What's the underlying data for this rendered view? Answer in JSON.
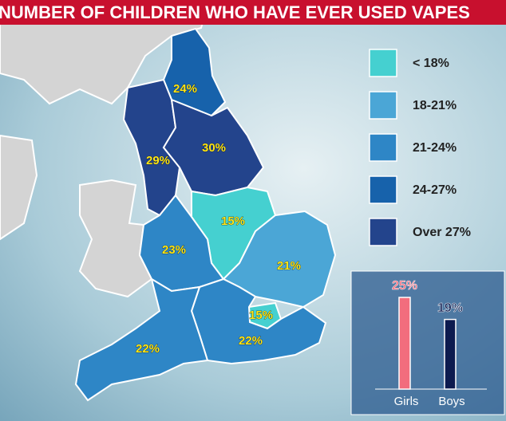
{
  "title": "NUMBER OF CHILDREN WHO HAVE EVER USED VAPES",
  "legend": [
    {
      "label": "< 18%",
      "color": "#45d0d0"
    },
    {
      "label": "18-21%",
      "color": "#4ba6d6"
    },
    {
      "label": "21-24%",
      "color": "#2e86c6"
    },
    {
      "label": "24-27%",
      "color": "#1762ab"
    },
    {
      "label": "Over 27%",
      "color": "#23448c"
    }
  ],
  "regions": [
    {
      "label": "24%",
      "color": "#1762ab"
    },
    {
      "label": "29%",
      "color": "#23448c"
    },
    {
      "label": "30%",
      "color": "#23448c"
    },
    {
      "label": "15%",
      "color": "#45d0d0"
    },
    {
      "label": "23%",
      "color": "#2e86c6"
    },
    {
      "label": "21%",
      "color": "#4ba6d6"
    },
    {
      "label": "15%",
      "color": "#45d0d0"
    },
    {
      "label": "22%",
      "color": "#2e86c6"
    },
    {
      "label": "22%",
      "color": "#2e86c6"
    }
  ],
  "chart_data": {
    "type": "bar",
    "categories": [
      "Girls",
      "Boys"
    ],
    "values": [
      25,
      19
    ],
    "value_labels": [
      "25%",
      "19%"
    ],
    "colors": [
      "#f26d7d",
      "#0d1b4f"
    ]
  }
}
